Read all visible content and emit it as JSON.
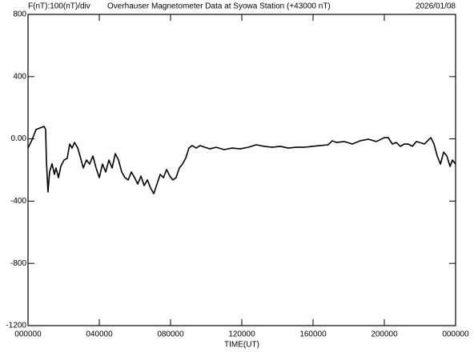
{
  "chart_data": {
    "type": "line",
    "subtitle": "F(nT):100(nT)/div",
    "title": "Overhauser Magnetometer Data at Syowa Station (+43000 nT)",
    "date": "2026/01/08",
    "x_label": "TIME(UT)",
    "xlim": [
      0,
      24
    ],
    "xticks": [
      {
        "value": 0,
        "label": "000000"
      },
      {
        "value": 4,
        "label": "040000"
      },
      {
        "value": 8,
        "label": "080000"
      },
      {
        "value": 12,
        "label": "120000"
      },
      {
        "value": 16,
        "label": "160000"
      },
      {
        "value": 20,
        "label": "200000"
      },
      {
        "value": 24,
        "label": "000000"
      }
    ],
    "ylim": [
      -1200,
      800
    ],
    "yticks": [
      {
        "value": -1200,
        "label": "-1200"
      },
      -800,
      -400,
      {
        "value": 0,
        "label": "0.00"
      },
      400,
      800
    ],
    "series": [
      {
        "color": "#000000",
        "x": [
          0,
          0.22,
          0.45,
          0.67,
          0.9,
          0.99,
          1.03,
          1.12,
          1.21,
          1.35,
          1.48,
          1.57,
          1.71,
          1.84,
          2.02,
          2.2,
          2.34,
          2.47,
          2.61,
          2.79,
          2.92,
          3.1,
          3.28,
          3.46,
          3.64,
          3.82,
          4.0,
          4.18,
          4.36,
          4.54,
          4.72,
          4.9,
          5.08,
          5.26,
          5.44,
          5.62,
          5.8,
          5.98,
          6.16,
          6.34,
          6.52,
          6.7,
          6.88,
          7.06,
          7.24,
          7.42,
          7.6,
          7.78,
          7.96,
          8.13,
          8.31,
          8.49,
          8.67,
          8.85,
          9.03,
          9.21,
          9.44,
          9.66,
          9.93,
          10.2,
          10.56,
          11.01,
          11.46,
          11.91,
          12.36,
          12.81,
          13.26,
          13.71,
          14.16,
          14.61,
          15.06,
          15.51,
          15.96,
          16.4,
          16.85,
          17.08,
          17.3,
          17.75,
          18.2,
          18.65,
          19.1,
          19.55,
          20.0,
          20.22,
          20.45,
          20.67,
          20.9,
          21.12,
          21.35,
          21.57,
          21.8,
          22.25,
          22.61,
          22.79,
          22.97,
          23.15,
          23.33,
          23.51,
          23.69,
          23.82,
          24
        ],
        "values": [
          -59,
          -7,
          60,
          70,
          80,
          60,
          -136,
          -341,
          -213,
          -160,
          -228,
          -187,
          -249,
          -177,
          -136,
          -125,
          -33,
          -59,
          -23,
          -59,
          -110,
          -187,
          -136,
          -162,
          -110,
          -187,
          -249,
          -162,
          -213,
          -136,
          -187,
          -95,
          -136,
          -213,
          -249,
          -264,
          -213,
          -249,
          -290,
          -239,
          -300,
          -264,
          -316,
          -352,
          -290,
          -228,
          -249,
          -197,
          -239,
          -264,
          -249,
          -187,
          -162,
          -125,
          -59,
          -43,
          -59,
          -43,
          -54,
          -64,
          -54,
          -69,
          -59,
          -64,
          -54,
          -38,
          -48,
          -54,
          -48,
          -59,
          -54,
          -54,
          -48,
          -43,
          -38,
          -12,
          -23,
          -17,
          -33,
          -12,
          -2,
          -17,
          8,
          8,
          -33,
          -23,
          -48,
          -33,
          -33,
          -48,
          -17,
          -33,
          8,
          -33,
          -110,
          -162,
          -85,
          -110,
          -177,
          -136,
          -162
        ]
      }
    ]
  }
}
